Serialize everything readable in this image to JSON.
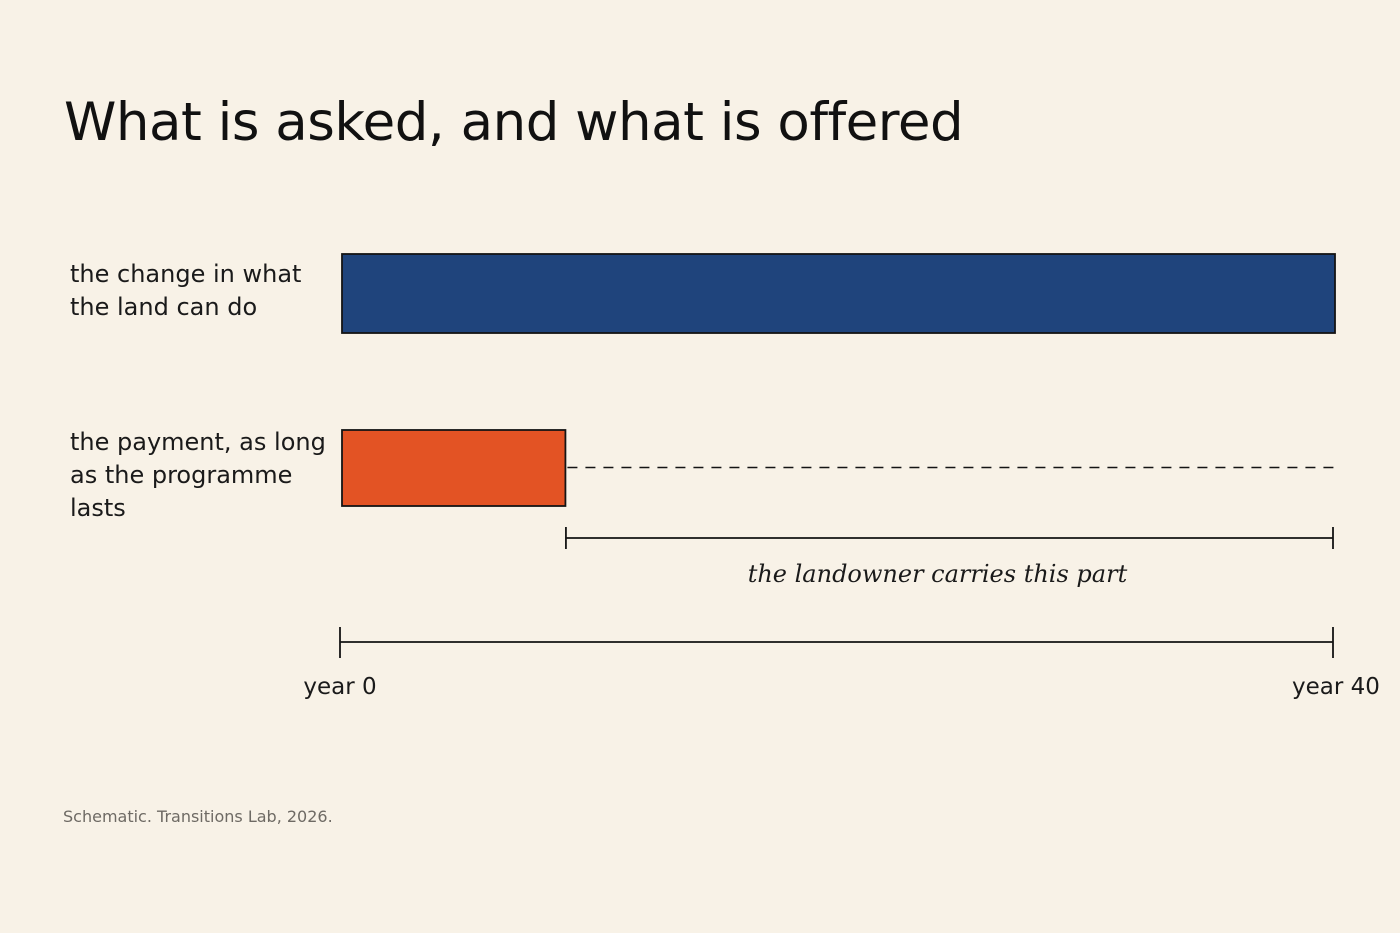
{
  "title": "What is asked, and what is offered",
  "source": "Schematic. Transitions Lab, 2026.",
  "colors": {
    "background": "#f8f2e7",
    "land_change": "#1f447c",
    "payment": "#e35324",
    "stroke": "#141414"
  },
  "chart_data": {
    "type": "bar",
    "orientation": "horizontal",
    "title": "What is asked, and what is offered",
    "categories": [
      "the change in what the land can do",
      "the payment, as long as the programme lasts"
    ],
    "series": [
      {
        "start": [
          0,
          0
        ],
        "end": [
          40,
          9
        ]
      }
    ],
    "bars": [
      {
        "label_lines": [
          "the change in what",
          "the land can do"
        ],
        "start_year": 0,
        "end_year": 40,
        "color": "#1f447c"
      },
      {
        "label_lines": [
          "the payment, as long",
          "as the programme lasts"
        ],
        "start_year": 0,
        "end_year": 9,
        "color": "#e35324",
        "dashed_extension_to_year": 40
      }
    ],
    "gap_bracket": {
      "start_year": 9,
      "end_year": 40,
      "label": "the landowner carries this part"
    },
    "x_axis": {
      "range": [
        0,
        40
      ],
      "tick_labels": [
        "year 0",
        "year 40"
      ],
      "grid": false
    }
  }
}
